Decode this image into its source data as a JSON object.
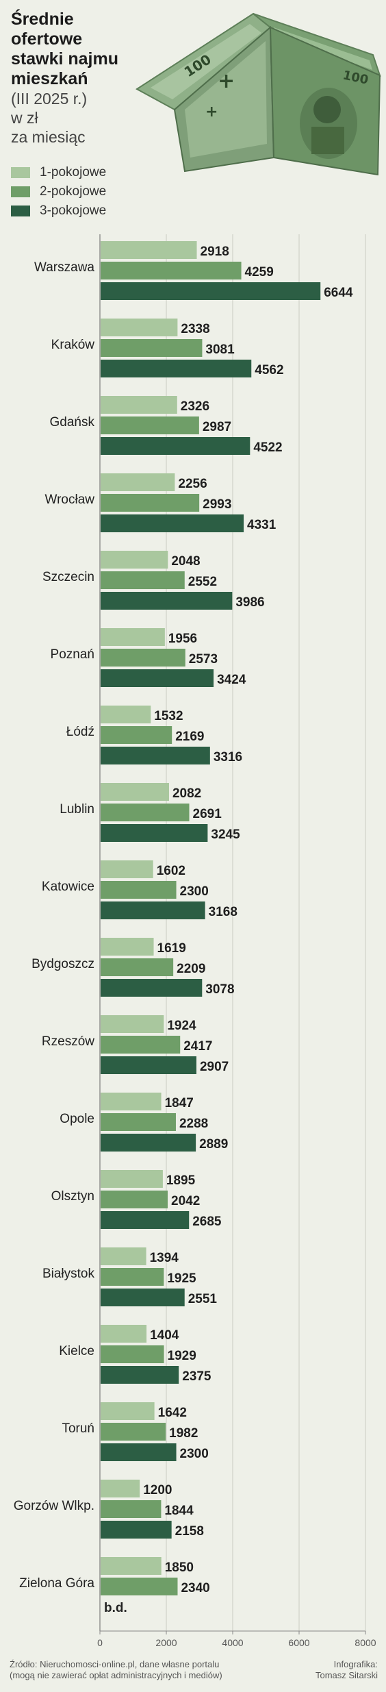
{
  "title": "Średnie ofertowe\nstawki najmu\nmieszkań",
  "subtitle": "(III 2025 r.)\nw zł\nza miesiąc",
  "colors": {
    "1-pokojowe": "#a9c79e",
    "2-pokojowe": "#6f9e68",
    "3-pokojowe": "#2c5e44"
  },
  "illustration": {
    "name": "banknote-house-illustration",
    "banknote_text": "100"
  },
  "chart_data": {
    "type": "bar",
    "orientation": "horizontal",
    "categories": [
      "Warszawa",
      "Kraków",
      "Gdańsk",
      "Wrocław",
      "Szczecin",
      "Poznań",
      "Łódź",
      "Lublin",
      "Katowice",
      "Bydgoszcz",
      "Rzeszów",
      "Opole",
      "Olsztyn",
      "Białystok",
      "Kielce",
      "Toruń",
      "Gorzów Wlkp.",
      "Zielona Góra"
    ],
    "series": [
      {
        "name": "1-pokojowe",
        "values": [
          2918,
          2338,
          2326,
          2256,
          2048,
          1956,
          1532,
          2082,
          1602,
          1619,
          1924,
          1847,
          1895,
          1394,
          1404,
          1642,
          1200,
          1850
        ]
      },
      {
        "name": "2-pokojowe",
        "values": [
          4259,
          3081,
          2987,
          2993,
          2552,
          2573,
          2169,
          2691,
          2300,
          2209,
          2417,
          2288,
          2042,
          1925,
          1929,
          1982,
          1844,
          2340
        ]
      },
      {
        "name": "3-pokojowe",
        "values": [
          6644,
          4562,
          4522,
          4331,
          3986,
          3424,
          3316,
          3245,
          3168,
          3078,
          2907,
          2889,
          2685,
          2551,
          2375,
          2300,
          2158,
          null
        ]
      }
    ],
    "missing_label": "b.d.",
    "xlim": [
      0,
      8000
    ],
    "xticks": [
      0,
      2000,
      4000,
      6000,
      8000
    ],
    "grid": true,
    "legend_position": "top-left"
  },
  "footer": {
    "source": "Źródło: Nieruchomosci-online.pl, dane własne portalu\n(mogą nie zawierać opłat administracyjnych i mediów)",
    "credit": "Infografika:\nTomasz Sitarski"
  }
}
